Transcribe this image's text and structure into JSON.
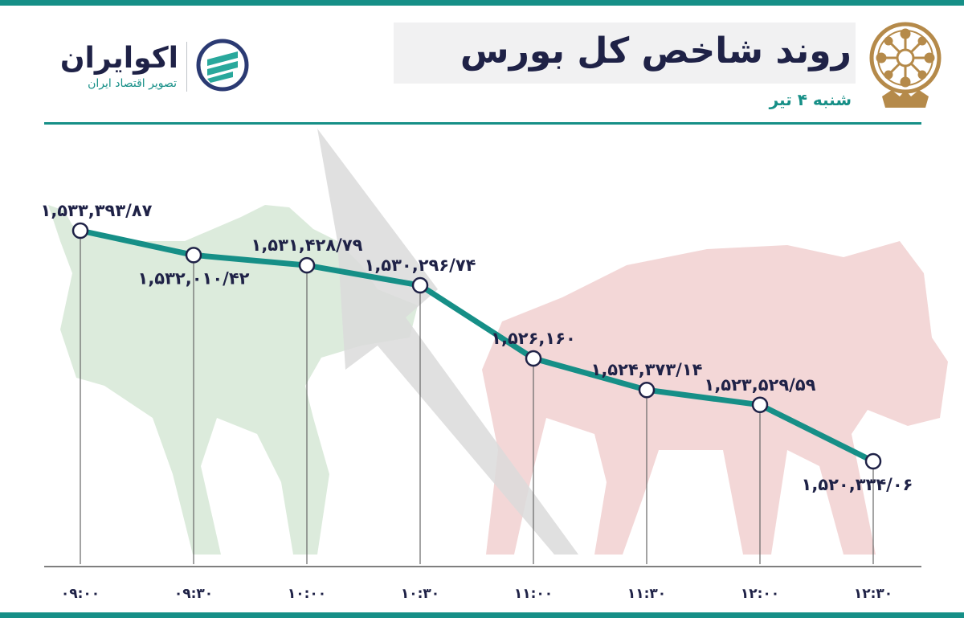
{
  "header": {
    "title": "روند شاخص کل بورس",
    "subtitle": "شنبه ۴ تیر"
  },
  "brand": {
    "name": "اکوایران",
    "tagline": "تصویر اقتصاد ایران"
  },
  "colors": {
    "accent": "#168f87",
    "navy": "#1f2247",
    "bull": "#dcebdc",
    "bear": "#f3d7d7",
    "arrow": "#dadada"
  },
  "chart_data": {
    "type": "line",
    "title": "روند شاخص کل بورس",
    "x": [
      "۰۹:۰۰",
      "۰۹:۳۰",
      "۱۰:۰۰",
      "۱۰:۳۰",
      "۱۱:۰۰",
      "۱۱:۳۰",
      "۱۲:۰۰",
      "۱۲:۳۰"
    ],
    "series": [
      {
        "values": [
          1533393.87,
          1532010.42,
          1531428.79,
          1530296.74,
          1526160,
          1524373.14,
          1523529.59,
          1520334.06
        ],
        "labels": [
          "۱,۵۳۳,۳۹۳/۸۷",
          "۱,۵۳۲,۰۱۰/۴۲",
          "۱,۵۳۱,۴۲۸/۷۹",
          "۱,۵۳۰,۲۹۶/۷۴",
          "۱,۵۲۶,۱۶۰",
          "۱,۵۲۴,۳۷۳/۱۴",
          "۱,۵۲۳,۵۲۹/۵۹",
          "۱,۵۲۰,۳۳۴/۰۶"
        ]
      }
    ],
    "xlabel": "",
    "ylabel": "",
    "grid": false,
    "legend": "none"
  }
}
